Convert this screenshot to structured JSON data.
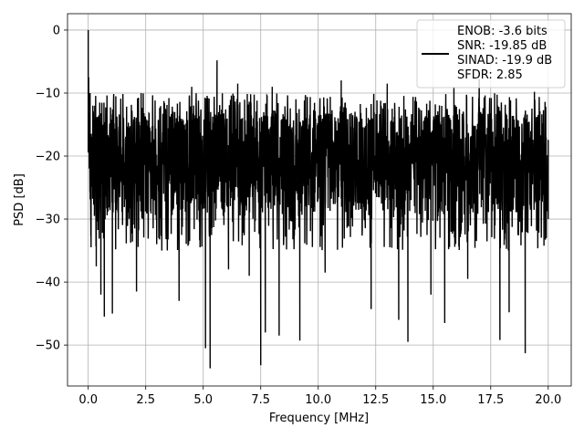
{
  "chart_data": {
    "type": "line",
    "xlabel": "Frequency [MHz]",
    "ylabel": "PSD [dB]",
    "xlim": [
      -0.9,
      21.0
    ],
    "ylim": [
      -56.5,
      2.6
    ],
    "xticks": [
      0.0,
      2.5,
      5.0,
      7.5,
      10.0,
      12.5,
      15.0,
      17.5,
      20.0
    ],
    "xtick_labels": [
      "0.0",
      "2.5",
      "5.0",
      "7.5",
      "10.0",
      "12.5",
      "15.0",
      "17.5",
      "20.0"
    ],
    "yticks": [
      0,
      -10,
      -20,
      -30,
      -40,
      -50
    ],
    "ytick_labels": [
      "0",
      "−10",
      "−20",
      "−30",
      "−40",
      "−50"
    ],
    "grid": true,
    "legend_position": "top-right",
    "series": [
      {
        "name": "ENOB: -3.6 bits\nSNR: -19.85 dB\nSINAD: -19.9 dB\nSFDR: 2.85",
        "color": "#000000",
        "description_x_range": [
          0.0,
          20.0
        ],
        "approx_floor_mean_db": -21,
        "peak": {
          "x": 0.0,
          "y": 0.0
        },
        "points": [
          [
            0.0,
            0.0
          ],
          [
            0.02,
            -7.5
          ],
          [
            0.05,
            -18.0
          ],
          [
            0.08,
            -10.0
          ],
          [
            0.12,
            -29.0
          ],
          [
            0.2,
            -12.0
          ],
          [
            0.35,
            -37.5
          ],
          [
            0.5,
            -11.5
          ],
          [
            0.55,
            -42.0
          ],
          [
            0.7,
            -45.5
          ],
          [
            1.05,
            -45.0
          ],
          [
            1.2,
            -10.5
          ],
          [
            2.1,
            -41.5
          ],
          [
            2.3,
            -10.0
          ],
          [
            3.2,
            -35.0
          ],
          [
            3.95,
            -43.0
          ],
          [
            4.5,
            -9.0
          ],
          [
            5.1,
            -50.5
          ],
          [
            5.3,
            -53.7
          ],
          [
            5.6,
            -4.8
          ],
          [
            6.1,
            -38.0
          ],
          [
            6.5,
            -8.5
          ],
          [
            7.0,
            -39.0
          ],
          [
            7.5,
            -53.2
          ],
          [
            7.7,
            -48.0
          ],
          [
            8.0,
            -9.0
          ],
          [
            8.3,
            -48.5
          ],
          [
            9.2,
            -49.3
          ],
          [
            10.3,
            -38.5
          ],
          [
            11.0,
            -8.0
          ],
          [
            12.3,
            -44.3
          ],
          [
            13.0,
            -8.5
          ],
          [
            13.5,
            -46.0
          ],
          [
            13.9,
            -49.5
          ],
          [
            14.9,
            -42.0
          ],
          [
            15.5,
            -46.5
          ],
          [
            15.9,
            -9.0
          ],
          [
            16.5,
            -39.5
          ],
          [
            17.0,
            -7.8
          ],
          [
            17.9,
            -49.2
          ],
          [
            18.3,
            -44.8
          ],
          [
            19.0,
            -51.3
          ],
          [
            19.4,
            -9.8
          ],
          [
            20.0,
            -30.0
          ]
        ]
      }
    ]
  }
}
